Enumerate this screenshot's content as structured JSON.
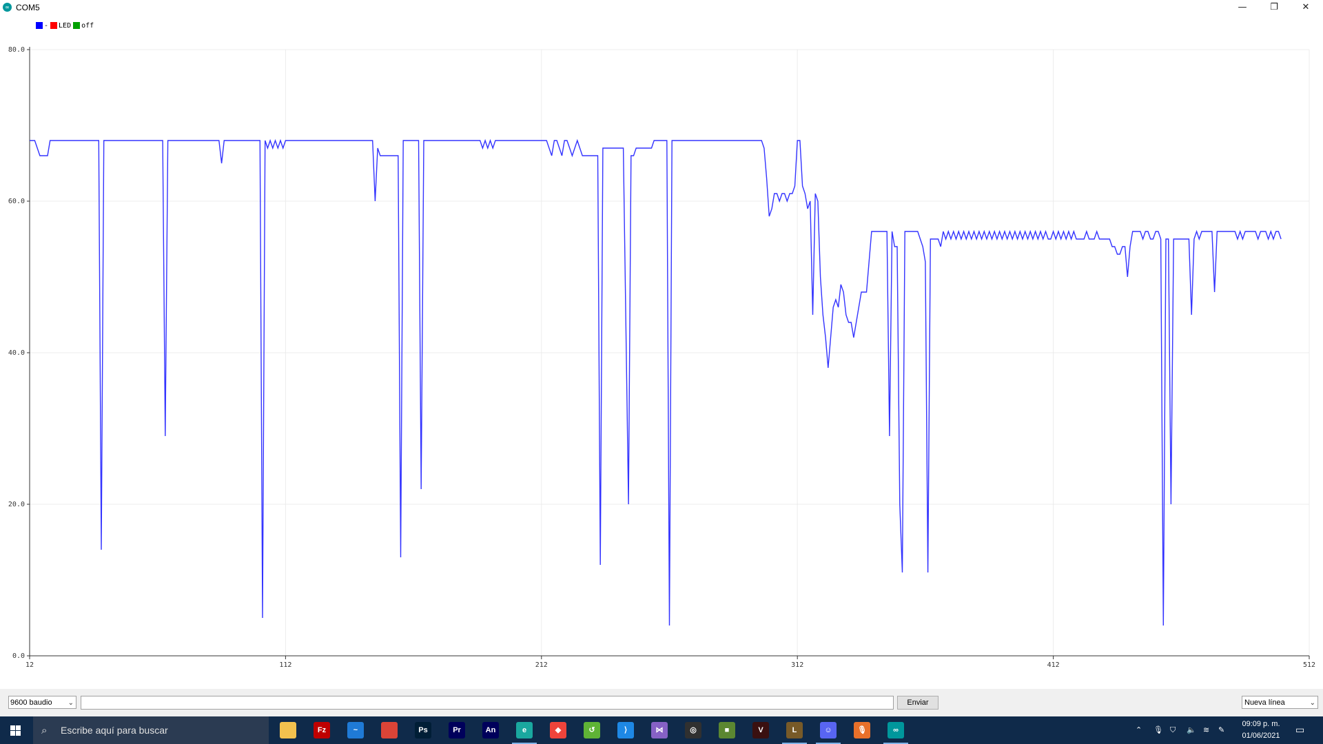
{
  "window": {
    "title": "COM5",
    "app_icon": "arduino-icon",
    "controls": {
      "minimize": "—",
      "restore": "❐",
      "close": "✕"
    }
  },
  "legend": [
    {
      "label": "-",
      "color": "#0000ff"
    },
    {
      "label": "LED",
      "color": "#ff0000"
    },
    {
      "label": "off",
      "color": "#00a000"
    }
  ],
  "chart_data": {
    "type": "line",
    "ylim": [
      0,
      80
    ],
    "xlim": [
      12,
      512
    ],
    "x_ticks": [
      "12",
      "112",
      "212",
      "312",
      "412",
      "512"
    ],
    "y_ticks": [
      "0.0",
      "20.0",
      "40.0",
      "60.0",
      "80.0"
    ],
    "grid": true,
    "legend_placement": "top-left",
    "series": [
      {
        "name": "-",
        "color": "#3333ff",
        "points": [
          [
            12,
            68
          ],
          [
            14,
            68
          ],
          [
            16,
            66
          ],
          [
            19,
            66
          ],
          [
            20,
            68
          ],
          [
            38,
            68
          ],
          [
            39,
            68
          ],
          [
            40,
            14
          ],
          [
            41,
            68
          ],
          [
            63,
            68
          ],
          [
            64,
            68
          ],
          [
            65,
            29
          ],
          [
            66,
            68
          ],
          [
            84,
            68
          ],
          [
            86,
            68
          ],
          [
            87,
            65
          ],
          [
            88,
            68
          ],
          [
            101,
            68
          ],
          [
            102,
            68
          ],
          [
            103,
            5
          ],
          [
            104,
            68
          ],
          [
            105,
            67
          ],
          [
            106,
            68
          ],
          [
            107,
            67
          ],
          [
            108,
            68
          ],
          [
            109,
            67
          ],
          [
            110,
            68
          ],
          [
            111,
            67
          ],
          [
            112,
            68
          ],
          [
            146,
            68
          ],
          [
            147,
            60
          ],
          [
            148,
            67
          ],
          [
            149,
            66
          ],
          [
            151,
            66
          ],
          [
            156,
            66
          ],
          [
            157,
            13
          ],
          [
            158,
            68
          ],
          [
            164,
            68
          ],
          [
            165,
            22
          ],
          [
            166,
            68
          ],
          [
            188,
            68
          ],
          [
            189,
            67
          ],
          [
            190,
            68
          ],
          [
            191,
            67
          ],
          [
            192,
            68
          ],
          [
            193,
            67
          ],
          [
            194,
            68
          ],
          [
            210,
            68
          ],
          [
            212,
            68
          ],
          [
            214,
            68
          ],
          [
            215,
            67
          ],
          [
            216,
            66
          ],
          [
            217,
            68
          ],
          [
            218,
            68
          ],
          [
            219,
            67
          ],
          [
            220,
            66
          ],
          [
            221,
            68
          ],
          [
            222,
            68
          ],
          [
            223,
            67
          ],
          [
            224,
            66
          ],
          [
            225,
            67
          ],
          [
            226,
            68
          ],
          [
            227,
            67
          ],
          [
            228,
            66
          ],
          [
            234,
            66
          ],
          [
            235,
            12
          ],
          [
            236,
            67
          ],
          [
            240,
            67
          ],
          [
            244,
            67
          ],
          [
            246,
            20
          ],
          [
            247,
            66
          ],
          [
            248,
            66
          ],
          [
            249,
            67
          ],
          [
            255,
            67
          ],
          [
            256,
            68
          ],
          [
            261,
            68
          ],
          [
            262,
            4
          ],
          [
            263,
            68
          ],
          [
            298,
            68
          ],
          [
            299,
            67
          ],
          [
            300,
            63
          ],
          [
            301,
            58
          ],
          [
            302,
            59
          ],
          [
            303,
            61
          ],
          [
            304,
            61
          ],
          [
            305,
            60
          ],
          [
            306,
            61
          ],
          [
            307,
            61
          ],
          [
            308,
            60
          ],
          [
            309,
            61
          ],
          [
            310,
            61
          ],
          [
            311,
            62
          ],
          [
            312,
            68
          ],
          [
            313,
            68
          ],
          [
            314,
            62
          ],
          [
            315,
            61
          ],
          [
            316,
            59
          ],
          [
            317,
            60
          ],
          [
            318,
            45
          ],
          [
            319,
            61
          ],
          [
            320,
            60
          ],
          [
            321,
            50
          ],
          [
            322,
            45
          ],
          [
            323,
            42
          ],
          [
            324,
            38
          ],
          [
            325,
            42
          ],
          [
            326,
            46
          ],
          [
            327,
            47
          ],
          [
            328,
            46
          ],
          [
            329,
            49
          ],
          [
            330,
            48
          ],
          [
            331,
            45
          ],
          [
            332,
            44
          ],
          [
            333,
            44
          ],
          [
            334,
            42
          ],
          [
            335,
            44
          ],
          [
            336,
            46
          ],
          [
            337,
            48
          ],
          [
            338,
            48
          ],
          [
            339,
            48
          ],
          [
            340,
            52
          ],
          [
            341,
            56
          ],
          [
            346,
            56
          ],
          [
            347,
            56
          ],
          [
            348,
            29
          ],
          [
            349,
            56
          ],
          [
            350,
            54
          ],
          [
            351,
            54
          ],
          [
            352,
            20
          ],
          [
            353,
            11
          ],
          [
            354,
            56
          ],
          [
            359,
            56
          ],
          [
            360,
            55
          ],
          [
            361,
            54
          ],
          [
            362,
            52
          ],
          [
            363,
            11
          ],
          [
            364,
            55
          ],
          [
            367,
            55
          ],
          [
            368,
            54
          ],
          [
            369,
            56
          ],
          [
            370,
            55
          ],
          [
            371,
            56
          ],
          [
            372,
            55
          ],
          [
            373,
            56
          ],
          [
            374,
            55
          ],
          [
            375,
            56
          ],
          [
            376,
            55
          ],
          [
            377,
            56
          ],
          [
            378,
            55
          ],
          [
            379,
            56
          ],
          [
            380,
            55
          ],
          [
            381,
            56
          ],
          [
            382,
            55
          ],
          [
            383,
            56
          ],
          [
            384,
            55
          ],
          [
            385,
            56
          ],
          [
            386,
            55
          ],
          [
            387,
            56
          ],
          [
            388,
            55
          ],
          [
            389,
            56
          ],
          [
            390,
            55
          ],
          [
            391,
            56
          ],
          [
            392,
            55
          ],
          [
            393,
            56
          ],
          [
            394,
            55
          ],
          [
            395,
            56
          ],
          [
            396,
            55
          ],
          [
            397,
            56
          ],
          [
            398,
            55
          ],
          [
            399,
            56
          ],
          [
            400,
            55
          ],
          [
            401,
            56
          ],
          [
            402,
            55
          ],
          [
            403,
            56
          ],
          [
            404,
            55
          ],
          [
            405,
            56
          ],
          [
            406,
            55
          ],
          [
            407,
            56
          ],
          [
            408,
            55
          ],
          [
            409,
            56
          ],
          [
            410,
            55
          ],
          [
            411,
            55
          ],
          [
            412,
            56
          ],
          [
            413,
            55
          ],
          [
            414,
            56
          ],
          [
            415,
            55
          ],
          [
            416,
            56
          ],
          [
            417,
            55
          ],
          [
            418,
            56
          ],
          [
            419,
            55
          ],
          [
            420,
            56
          ],
          [
            421,
            55
          ],
          [
            424,
            55
          ],
          [
            425,
            56
          ],
          [
            426,
            55
          ],
          [
            428,
            55
          ],
          [
            429,
            56
          ],
          [
            430,
            55
          ],
          [
            434,
            55
          ],
          [
            435,
            54
          ],
          [
            436,
            54
          ],
          [
            437,
            53
          ],
          [
            438,
            53
          ],
          [
            439,
            54
          ],
          [
            440,
            54
          ],
          [
            441,
            50
          ],
          [
            442,
            54
          ],
          [
            443,
            56
          ],
          [
            446,
            56
          ],
          [
            447,
            55
          ],
          [
            448,
            56
          ],
          [
            449,
            56
          ],
          [
            450,
            55
          ],
          [
            451,
            55
          ],
          [
            452,
            56
          ],
          [
            453,
            56
          ],
          [
            454,
            55
          ],
          [
            455,
            4
          ],
          [
            456,
            55
          ],
          [
            457,
            55
          ],
          [
            458,
            20
          ],
          [
            459,
            55
          ],
          [
            465,
            55
          ],
          [
            466,
            45
          ],
          [
            467,
            55
          ],
          [
            468,
            56
          ],
          [
            469,
            55
          ],
          [
            470,
            56
          ],
          [
            474,
            56
          ],
          [
            475,
            48
          ],
          [
            476,
            56
          ],
          [
            483,
            56
          ],
          [
            484,
            55
          ],
          [
            485,
            56
          ],
          [
            486,
            55
          ],
          [
            487,
            56
          ],
          [
            491,
            56
          ],
          [
            492,
            55
          ],
          [
            493,
            56
          ],
          [
            495,
            56
          ],
          [
            496,
            55
          ],
          [
            497,
            56
          ],
          [
            498,
            55
          ],
          [
            499,
            56
          ],
          [
            500,
            56
          ],
          [
            501,
            55
          ]
        ]
      }
    ]
  },
  "bottom": {
    "baud": "9600 baudio",
    "input_value": "",
    "send_label": "Enviar",
    "line_ending": "Nueva línea"
  },
  "taskbar": {
    "search_placeholder": "Escribe aquí para buscar",
    "apps": [
      {
        "name": "file-explorer-icon",
        "text": "",
        "color": "#f2c14e"
      },
      {
        "name": "filezilla-icon",
        "text": "Fz",
        "color": "#bf0000"
      },
      {
        "name": "sway-icon",
        "text": "~",
        "color": "#1f7ad6"
      },
      {
        "name": "chrome-icon",
        "text": "",
        "color": "#db4437"
      },
      {
        "name": "photoshop-icon",
        "text": "Ps",
        "color": "#001e36"
      },
      {
        "name": "premiere-icon",
        "text": "Pr",
        "color": "#00005b"
      },
      {
        "name": "animate-icon",
        "text": "An",
        "color": "#00005b"
      },
      {
        "name": "edge-icon",
        "text": "e",
        "color": "#1aa89f"
      },
      {
        "name": "anydesk-icon",
        "text": "◆",
        "color": "#ef443b"
      },
      {
        "name": "utility-icon",
        "text": "↺",
        "color": "#5fb336"
      },
      {
        "name": "vscode-icon",
        "text": "⟩",
        "color": "#1e88e5"
      },
      {
        "name": "visual-studio-icon",
        "text": "⋈",
        "color": "#8661c5"
      },
      {
        "name": "obs-icon",
        "text": "◎",
        "color": "#303030"
      },
      {
        "name": "minecraft-icon",
        "text": "■",
        "color": "#5b8731"
      },
      {
        "name": "vectr-icon",
        "text": "V",
        "color": "#3a1010"
      },
      {
        "name": "league-icon",
        "text": "L",
        "color": "#785a28"
      },
      {
        "name": "discord-icon",
        "text": "☺",
        "color": "#5865f2"
      },
      {
        "name": "microphone-app-icon",
        "text": "🎙",
        "color": "#e8702a"
      },
      {
        "name": "arduino-app-icon",
        "text": "∞",
        "color": "#00979c"
      }
    ],
    "time": "09:09 p. m.",
    "date": "01/06/2021"
  }
}
